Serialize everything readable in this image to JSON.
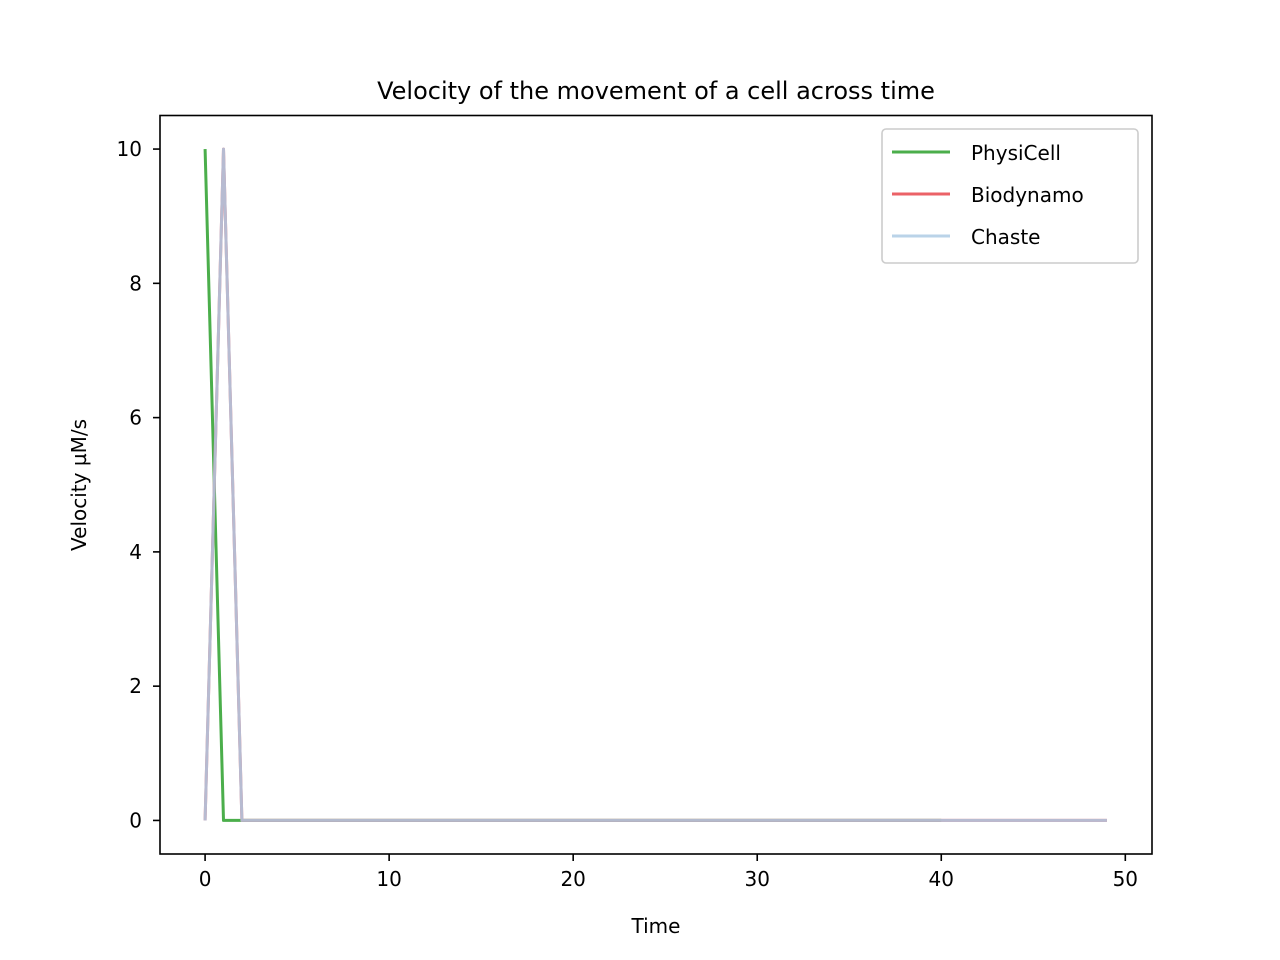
{
  "chart_data": {
    "type": "line",
    "title": "Velocity of the movement of a cell across time",
    "xlabel": "Time",
    "ylabel": "Velocity µM/s",
    "xlim": [
      -2.45,
      51.45
    ],
    "ylim": [
      -0.5,
      10.5
    ],
    "xticks": [
      0,
      10,
      20,
      30,
      40,
      50
    ],
    "yticks": [
      0,
      2,
      4,
      6,
      8,
      10
    ],
    "grid": false,
    "legend_position": "top-right",
    "series": [
      {
        "name": "PhysiCell",
        "color": "#2ca02c",
        "x": [
          0,
          1,
          2,
          40
        ],
        "y": [
          10,
          0,
          0,
          0
        ]
      },
      {
        "name": "Biodynamo",
        "color": "#e8474c",
        "x": [
          0,
          1,
          2,
          49
        ],
        "y": [
          0,
          10,
          0,
          0
        ]
      },
      {
        "name": "Chaste",
        "color": "#aecbe4",
        "x": [
          0,
          1,
          2,
          49
        ],
        "y": [
          0,
          10,
          0,
          0
        ]
      }
    ]
  }
}
